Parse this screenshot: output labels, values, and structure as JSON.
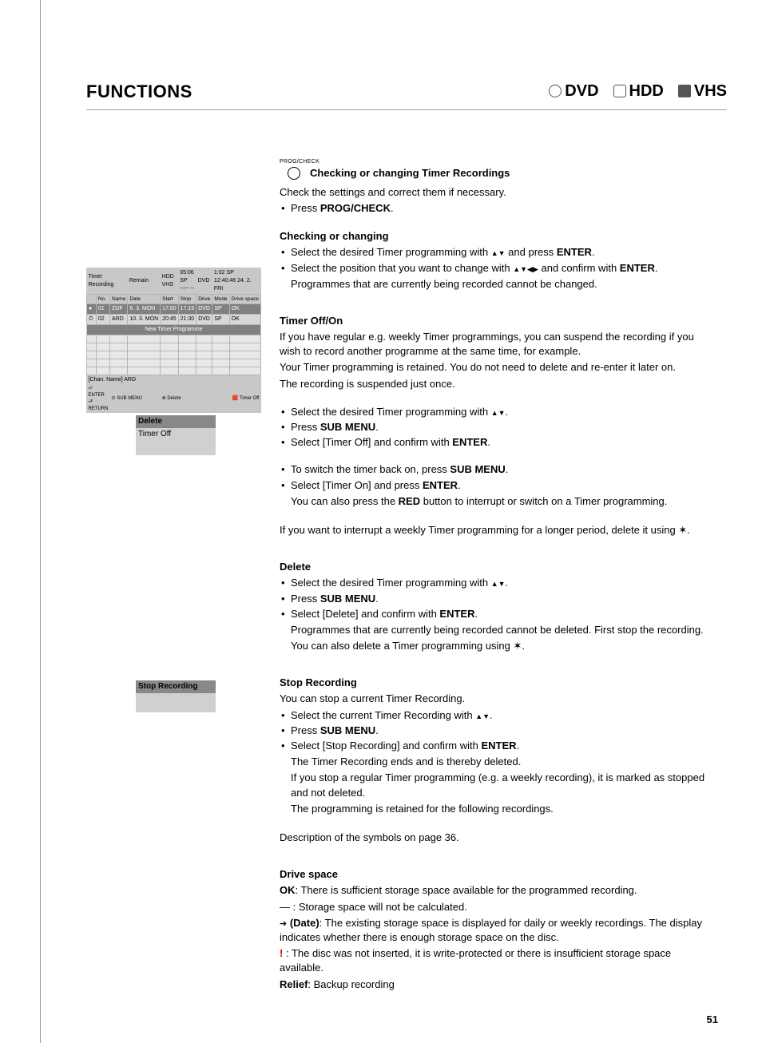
{
  "header": {
    "title": "FUNCTIONS",
    "media": [
      "DVD",
      "HDD",
      "VHS"
    ]
  },
  "intro": {
    "prog_label": "PROG/CHECK",
    "heading": "Checking or changing Timer Recordings",
    "line1": "Check the settings and correct them if necessary.",
    "bullet1": "Press ",
    "bullet1_btn": "PROG/CHECK",
    "bullet1_suffix": "."
  },
  "checking": {
    "heading": "Checking or changing",
    "b1_pre": "Select the desired Timer programming with ",
    "b1_post": " and press ",
    "b1_btn": "ENTER",
    "b2_pre": "Select the position that you want to change with ",
    "b2_post": " and confirm with ",
    "b2_btn": "ENTER",
    "b2_note": "Programmes that are currently being recorded cannot be changed."
  },
  "timer_off": {
    "heading": "Timer Off/On",
    "p1": "If you have regular e.g. weekly Timer programmings, you can suspend the recording if you wish to record another programme at the same time, for example.",
    "p2": "Your Timer programming is retained. You do not need to delete and re-enter it later on.",
    "p3": "The recording is suspended just once.",
    "b1_pre": "Select the desired Timer programming with ",
    "b2_pre": "Press ",
    "b2_btn": "SUB MENU",
    "b3": "Select [Timer Off] and confirm with ",
    "b3_btn": "ENTER",
    "b4_pre": "To switch the timer back on, press ",
    "b4_btn": "SUB MENU",
    "b5_pre": "Select [Timer On] and press ",
    "b5_btn": "ENTER",
    "b5_note_a": "You can also press the ",
    "b5_note_btn": "RED",
    "b5_note_b": " button to interrupt or switch on a Timer programming.",
    "p4": "If you want to interrupt a weekly Timer programming for a longer period, delete it using "
  },
  "delete": {
    "heading": "Delete",
    "b1_pre": "Select the desired Timer programming with ",
    "b2_pre": "Press ",
    "b2_btn": "SUB MENU",
    "b3_pre": "Select [Delete] and confirm with ",
    "b3_btn": "ENTER",
    "note1": "Programmes that are currently being recorded cannot be deleted. First stop the recording.",
    "note2": "You can also delete a Timer programming using "
  },
  "stop": {
    "heading": "Stop Recording",
    "p1": "You can stop a current Timer Recording.",
    "b1_pre": "Select the current Timer Recording with ",
    "b2_pre": "Press ",
    "b2_btn": "SUB MENU",
    "b3_pre": "Select [Stop Recording] and confirm with ",
    "b3_btn": "ENTER",
    "note1": "The Timer Recording ends and is thereby deleted.",
    "note2": "If you stop a regular Timer programming (e.g. a weekly recording), it is marked as stopped and not deleted.",
    "note3": "The programming is retained for the following recordings.",
    "p2": "Description of the symbols on page 36."
  },
  "drive": {
    "heading": "Drive space",
    "ok_label": "OK",
    "ok_text": ": There is sufficient storage space available for the programmed recording.",
    "dash": " — : Storage space will not be calculated.",
    "date_label": " (Date)",
    "date_text": ": The existing storage space is displayed for daily or weekly recordings. The display indicates whether there is enough storage space on the disc.",
    "bang_text": ": The disc was not inserted, it is write-protected or there is insufficient storage space available.",
    "relief_label": "Relief",
    "relief_text": ": Backup recording"
  },
  "timer_table": {
    "title": "Timer Recording",
    "remain_label": "Remain",
    "hdd": "HDD",
    "hdd_val": "35:06 SP",
    "vhs": "VHS",
    "vhs_val": "--:-- --",
    "dvd": "DVD",
    "dvd_val": "1:02 SP",
    "datetime": "12:40:46   24. 2. FRI",
    "cols": [
      "No.",
      "Name",
      "Date",
      "Start",
      "Stop",
      "Drive",
      "Mode",
      "Drive space"
    ],
    "rows": [
      [
        "●",
        "01",
        "ZDF",
        "6. 3. MON",
        "17:00",
        "17:15",
        "DVD",
        "SP",
        "OK"
      ],
      [
        "⏱",
        "02",
        "ARD",
        "10. 3. MON",
        "20:45",
        "21:30",
        "DVD",
        "SP",
        "OK"
      ]
    ],
    "new_prog": "New Timer Programme",
    "channame": "[Chan. Name] ARD",
    "foot": {
      "enter": "ENTER",
      "return": "RETURN",
      "sub": "SUB MENU",
      "delete": "Delete",
      "timeroff": "Timer Off"
    }
  },
  "menu1": {
    "hl": "Delete",
    "it1": "Timer Off"
  },
  "menu2": {
    "hl": "Stop Recording"
  },
  "page_num": "51"
}
